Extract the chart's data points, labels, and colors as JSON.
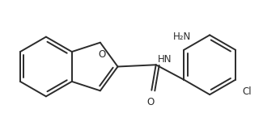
{
  "bg_color": "#ffffff",
  "bond_color": "#2b2b2b",
  "text_color": "#2b2b2b",
  "line_width": 1.4,
  "font_size": 8.5,
  "figsize": [
    3.25,
    1.56
  ],
  "dpi": 100,
  "NH2_label": "H₂N",
  "HN_label": "HN",
  "O_label": "O",
  "Cl_label": "Cl"
}
